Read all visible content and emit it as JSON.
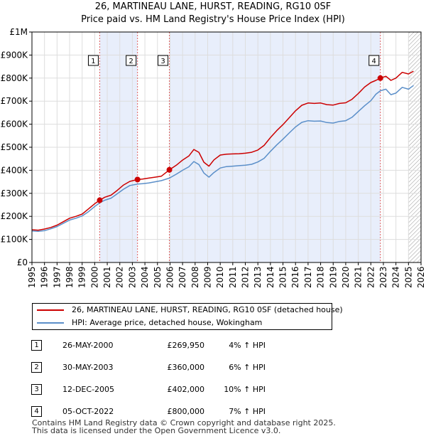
{
  "chart_data": {
    "type": "line",
    "title": "26, MARTINEAU LANE, HURST, READING, RG10 0SF",
    "subtitle": "Price paid vs. HM Land Registry's House Price Index (HPI)",
    "xlabel": "",
    "ylabel": "",
    "xlim": [
      1995,
      2026
    ],
    "ylim": [
      0,
      1000000
    ],
    "y_ticks": [
      0,
      100000,
      200000,
      300000,
      400000,
      500000,
      600000,
      700000,
      800000,
      900000,
      1000000
    ],
    "y_tick_labels": [
      "£0",
      "£100K",
      "£200K",
      "£300K",
      "£400K",
      "£500K",
      "£600K",
      "£700K",
      "£800K",
      "£900K",
      "£1M"
    ],
    "x_ticks": [
      1995,
      1996,
      1997,
      1998,
      1999,
      2000,
      2001,
      2002,
      2003,
      2004,
      2005,
      2006,
      2007,
      2008,
      2009,
      2010,
      2011,
      2012,
      2013,
      2014,
      2015,
      2016,
      2017,
      2018,
      2019,
      2020,
      2021,
      2022,
      2023,
      2024,
      2025,
      2026
    ],
    "x_tick_labels": [
      "1995",
      "1996",
      "1997",
      "1998",
      "1999",
      "2000",
      "2001",
      "2002",
      "2003",
      "2004",
      "2005",
      "2006",
      "2007",
      "2008",
      "2009",
      "2010",
      "2011",
      "2012",
      "2013",
      "2014",
      "2015",
      "2016",
      "2017",
      "2018",
      "2019",
      "2020",
      "2021",
      "2022",
      "2023",
      "2024",
      "2025",
      "2026"
    ],
    "grid": true,
    "shaded_periods": [
      [
        2000.4,
        2003.41
      ],
      [
        2005.95,
        2022.76
      ]
    ],
    "hatched_from": 2025.0,
    "series": [
      {
        "name": "26, MARTINEAU LANE, HURST, READING, RG10 0SF (detached house)",
        "color": "#cc0000",
        "x": [
          1995.0,
          1995.5,
          1996.0,
          1996.5,
          1997.0,
          1997.5,
          1998.0,
          1998.5,
          1999.0,
          1999.5,
          2000.0,
          2000.4,
          2000.8,
          2001.3,
          2001.8,
          2002.3,
          2002.8,
          2003.41,
          2003.8,
          2004.3,
          2004.8,
          2005.3,
          2005.95,
          2006.5,
          2007.0,
          2007.5,
          2007.9,
          2008.3,
          2008.7,
          2009.1,
          2009.5,
          2010.0,
          2010.5,
          2011.0,
          2011.5,
          2012.0,
          2012.5,
          2013.0,
          2013.5,
          2014.0,
          2014.5,
          2015.0,
          2015.5,
          2016.0,
          2016.5,
          2017.0,
          2017.5,
          2018.0,
          2018.5,
          2019.0,
          2019.5,
          2020.0,
          2020.5,
          2021.0,
          2021.5,
          2022.0,
          2022.4,
          2022.76,
          2023.2,
          2023.6,
          2024.0,
          2024.5,
          2025.0,
          2025.4
        ],
        "values": [
          142000,
          140000,
          145000,
          152000,
          162000,
          177000,
          192000,
          200000,
          210000,
          232000,
          255000,
          269950,
          283000,
          292000,
          313000,
          336000,
          352000,
          360000,
          362000,
          366000,
          370000,
          374000,
          402000,
          422000,
          444000,
          462000,
          490000,
          478000,
          435000,
          418000,
          445000,
          466000,
          470000,
          471000,
          472000,
          474000,
          478000,
          488000,
          508000,
          542000,
          572000,
          598000,
          628000,
          658000,
          682000,
          692000,
          690000,
          692000,
          685000,
          683000,
          690000,
          693000,
          708000,
          733000,
          761000,
          781000,
          790000,
          800000,
          808000,
          790000,
          800000,
          825000,
          818000,
          830000
        ]
      },
      {
        "name": "HPI: Average price, detached house, Wokingham",
        "color": "#5b8fc9",
        "x": [
          1995.0,
          1995.5,
          1996.0,
          1996.5,
          1997.0,
          1997.5,
          1998.0,
          1998.5,
          1999.0,
          1999.5,
          2000.0,
          2000.4,
          2000.8,
          2001.3,
          2001.8,
          2002.3,
          2002.8,
          2003.41,
          2003.8,
          2004.3,
          2004.8,
          2005.3,
          2005.95,
          2006.5,
          2007.0,
          2007.5,
          2007.9,
          2008.3,
          2008.7,
          2009.1,
          2009.5,
          2010.0,
          2010.5,
          2011.0,
          2011.5,
          2012.0,
          2012.5,
          2013.0,
          2013.5,
          2014.0,
          2014.5,
          2015.0,
          2015.5,
          2016.0,
          2016.5,
          2017.0,
          2017.5,
          2018.0,
          2018.5,
          2019.0,
          2019.5,
          2020.0,
          2020.5,
          2021.0,
          2021.5,
          2022.0,
          2022.4,
          2022.76,
          2023.2,
          2023.6,
          2024.0,
          2024.5,
          2025.0,
          2025.4
        ],
        "values": [
          137000,
          135000,
          138000,
          146000,
          156000,
          170000,
          184000,
          192000,
          202000,
          220000,
          243000,
          259000,
          270000,
          279000,
          298000,
          318000,
          334000,
          340000,
          342000,
          345000,
          350000,
          355000,
          366000,
          383000,
          400000,
          415000,
          438000,
          425000,
          388000,
          370000,
          390000,
          410000,
          416000,
          418000,
          420000,
          422000,
          426000,
          436000,
          452000,
          482000,
          510000,
          535000,
          562000,
          588000,
          608000,
          615000,
          613000,
          614000,
          607000,
          605000,
          612000,
          615000,
          630000,
          655000,
          680000,
          702000,
          730000,
          745000,
          752000,
          728000,
          735000,
          760000,
          752000,
          768000
        ]
      }
    ],
    "sales": [
      {
        "n": "1",
        "x": 2000.4,
        "value": 269950,
        "date": "26-MAY-2000",
        "price": "£269,950",
        "hpi": "4% ↑ HPI"
      },
      {
        "n": "2",
        "x": 2003.41,
        "value": 360000,
        "date": "30-MAY-2003",
        "price": "£360,000",
        "hpi": "6% ↑ HPI"
      },
      {
        "n": "3",
        "x": 2005.95,
        "value": 402000,
        "date": "12-DEC-2005",
        "price": "£402,000",
        "hpi": "10% ↑ HPI"
      },
      {
        "n": "4",
        "x": 2022.76,
        "value": 800000,
        "date": "05-OCT-2022",
        "price": "£800,000",
        "hpi": "7% ↑ HPI"
      }
    ]
  },
  "legend": {
    "property_label": "26, MARTINEAU LANE, HURST, READING, RG10 0SF (detached house)",
    "hpi_label": "HPI: Average price, detached house, Wokingham"
  },
  "footer": {
    "line1": "Contains HM Land Registry data © Crown copyright and database right 2025.",
    "line2": "This data is licensed under the Open Government Licence v3.0."
  }
}
